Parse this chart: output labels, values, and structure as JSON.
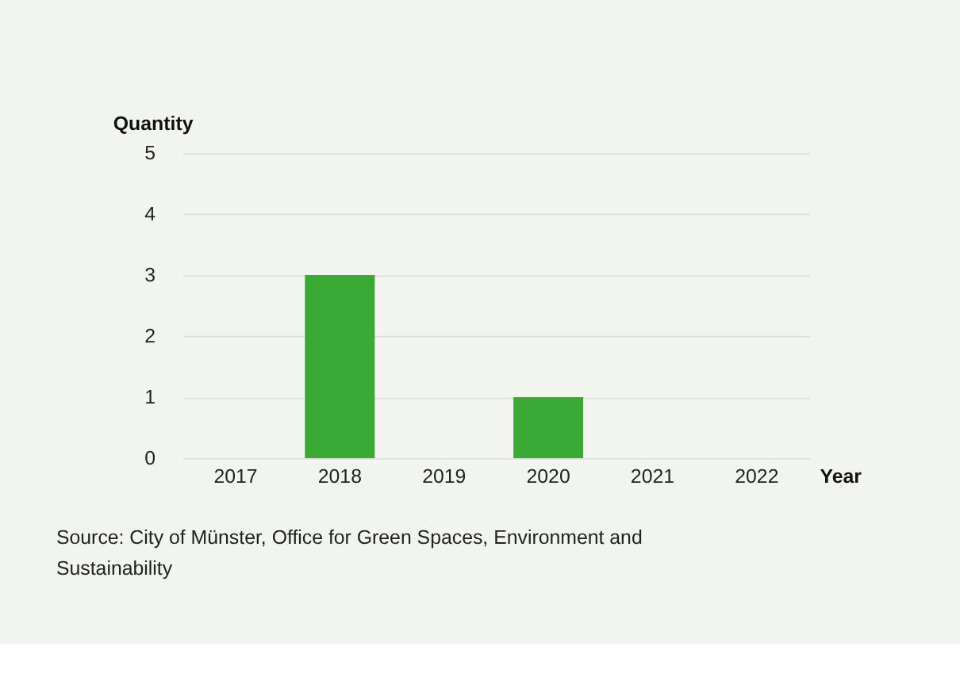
{
  "chart_data": {
    "type": "bar",
    "categories": [
      "2017",
      "2018",
      "2019",
      "2020",
      "2021",
      "2022"
    ],
    "values": [
      0,
      3,
      0,
      1,
      0,
      0
    ],
    "color": "#3aaa35",
    "xlabel": "Year",
    "ylabel": "Quantity",
    "ylim": [
      0,
      5
    ],
    "yticks": [
      0,
      1,
      2,
      3,
      4,
      5
    ],
    "grid": "y",
    "annotations": [
      "Source: City of Münster, Office for Green Spaces, Environment and Sustainability"
    ]
  }
}
